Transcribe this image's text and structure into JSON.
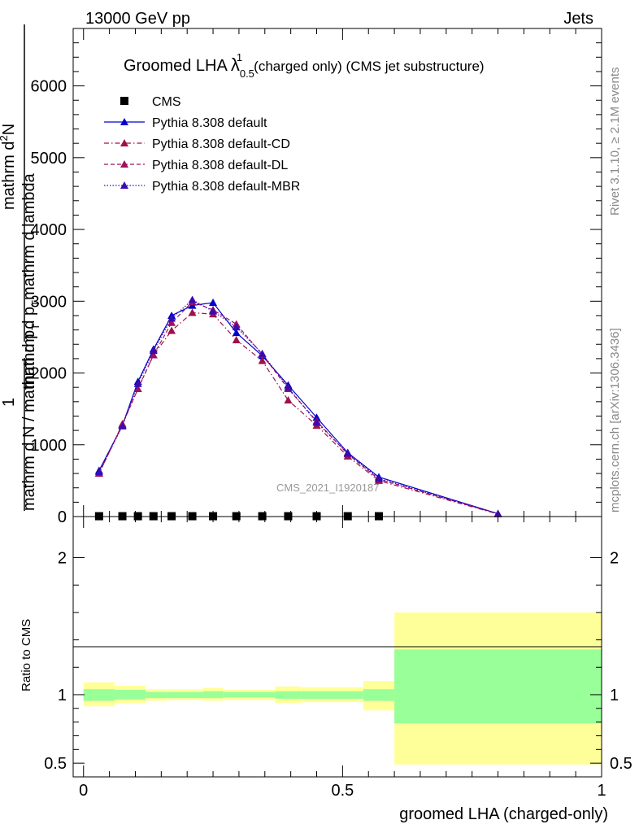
{
  "header": {
    "energy_label": "13000 GeV pp",
    "process_label": "Jets",
    "title_main": "Groomed LHA",
    "title_lambda": "λ",
    "title_sup": "1",
    "title_sub": "0.5",
    "title_suffix": "(charged only) (CMS jet substructure)",
    "analysis_id": "CMS_2021_I1920187",
    "side_label_top": "Rivet 3.1.10, ≥ 2.1M events",
    "side_label_bottom": "mcplots.cern.ch [arXiv:1306.3436]"
  },
  "upper_ylabel": {
    "numerator_one": "1",
    "denominator": "mathrm d N / mathrm d p",
    "denominator_sub": "T",
    "numerator": "mathrm d",
    "numerator_sup": "2",
    "numerator_rest": "N",
    "denominator2": "mathrm d p",
    "denominator2_sub": "T",
    "denominator2_rest": "mathrm d lambda"
  },
  "colors": {
    "cms": "#000000",
    "default": "#0000cc",
    "cd": "#a0104a",
    "dl": "#a01060",
    "mbr": "#3a0cb0",
    "band_inner": "#99ff99",
    "band_outer": "#ffff99"
  },
  "chart_data": [
    {
      "type": "line",
      "panel": "main",
      "xlabel": "groomed LHA (charged-only)",
      "ylabel": "",
      "xlim": [
        -0.02,
        1.0
      ],
      "ylim": [
        0,
        6800
      ],
      "yticks": [
        0,
        1000,
        2000,
        3000,
        4000,
        5000,
        6000
      ],
      "ytick_labels": [
        "0",
        "1000",
        "2000",
        "3000",
        "4000",
        "5000",
        "6000"
      ],
      "legend_position": "top-left",
      "x": [
        0.03,
        0.075,
        0.105,
        0.135,
        0.17,
        0.21,
        0.25,
        0.295,
        0.345,
        0.395,
        0.45,
        0.51,
        0.57,
        0.8
      ],
      "series": [
        {
          "name": "CMS",
          "style": "marker",
          "values": [
            5,
            5,
            5,
            5,
            5,
            5,
            5,
            5,
            5,
            5,
            5,
            5,
            5,
            null
          ]
        },
        {
          "name": "Pythia 8.308 default",
          "style": "solid",
          "values": [
            640,
            1270,
            1880,
            2330,
            2800,
            2940,
            2980,
            2560,
            2240,
            1830,
            1380,
            890,
            550,
            40
          ]
        },
        {
          "name": "Pythia 8.308 default-CD",
          "style": "dashdot",
          "values": [
            600,
            1290,
            1780,
            2250,
            2590,
            2840,
            2820,
            2460,
            2170,
            1620,
            1270,
            840,
            500,
            35
          ]
        },
        {
          "name": "Pythia 8.308 default-DL",
          "style": "dashed",
          "values": [
            600,
            1280,
            1780,
            2250,
            2700,
            2990,
            2880,
            2680,
            2260,
            1780,
            1330,
            870,
            520,
            38
          ]
        },
        {
          "name": "Pythia 8.308 default-MBR",
          "style": "dotted",
          "values": [
            620,
            1260,
            1850,
            2310,
            2760,
            3020,
            2860,
            2640,
            2270,
            1800,
            1310,
            880,
            530,
            40
          ]
        }
      ]
    },
    {
      "type": "area",
      "panel": "ratio",
      "xlabel": "groomed LHA (charged-only)",
      "ylabel": "Ratio to CMS",
      "xlim": [
        -0.02,
        1.0
      ],
      "ylim": [
        0.4,
        2.3
      ],
      "yticks": [
        0.5,
        1,
        2
      ],
      "ytick_labels": [
        "0.5",
        "1",
        "2"
      ],
      "xticks": [
        0,
        0.5,
        1
      ],
      "xtick_labels": [
        "0",
        "0.5",
        "1"
      ],
      "bins": [
        {
          "x0": 0.0,
          "x1": 0.06,
          "inner": [
            0.955,
            1.04
          ],
          "outer": [
            0.915,
            1.09
          ]
        },
        {
          "x0": 0.06,
          "x1": 0.12,
          "inner": [
            0.965,
            1.035
          ],
          "outer": [
            0.94,
            1.065
          ]
        },
        {
          "x0": 0.12,
          "x1": 0.16,
          "inner": [
            0.975,
            1.02
          ],
          "outer": [
            0.955,
            1.04
          ]
        },
        {
          "x0": 0.16,
          "x1": 0.23,
          "inner": [
            0.975,
            1.02
          ],
          "outer": [
            0.96,
            1.04
          ]
        },
        {
          "x0": 0.23,
          "x1": 0.27,
          "inner": [
            0.975,
            1.025
          ],
          "outer": [
            0.955,
            1.05
          ]
        },
        {
          "x0": 0.27,
          "x1": 0.37,
          "inner": [
            0.98,
            1.02
          ],
          "outer": [
            0.96,
            1.035
          ]
        },
        {
          "x0": 0.37,
          "x1": 0.42,
          "inner": [
            0.97,
            1.025
          ],
          "outer": [
            0.94,
            1.06
          ]
        },
        {
          "x0": 0.42,
          "x1": 0.54,
          "inner": [
            0.97,
            1.025
          ],
          "outer": [
            0.945,
            1.055
          ]
        },
        {
          "x0": 0.54,
          "x1": 0.6,
          "inner": [
            0.955,
            1.04
          ],
          "outer": [
            0.885,
            1.1
          ]
        },
        {
          "x0": 0.6,
          "x1": 1.0,
          "inner": [
            0.79,
            1.33
          ],
          "outer": [
            0.49,
            1.6
          ]
        }
      ]
    }
  ]
}
